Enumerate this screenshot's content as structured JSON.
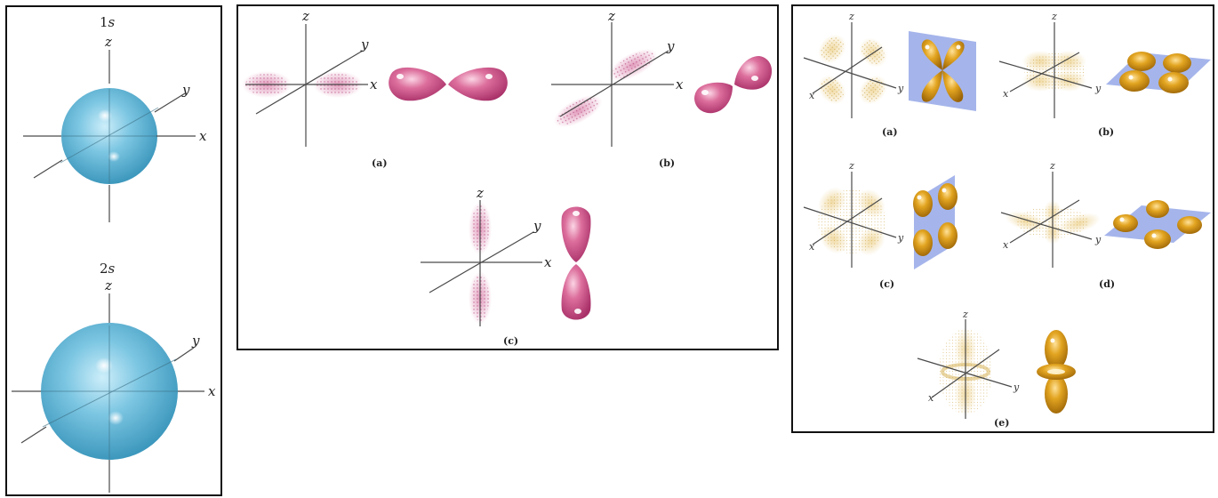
{
  "s_orbitals": {
    "orbital_1": {
      "prefix": "1",
      "letter": "s"
    },
    "orbital_2": {
      "prefix": "2",
      "letter": "s"
    },
    "axes": {
      "x": "x",
      "y": "y",
      "z": "z"
    }
  },
  "p_orbitals": {
    "axes": {
      "x": "x",
      "y": "y",
      "z": "z"
    },
    "captions": {
      "a": "(a)",
      "b": "(b)",
      "c": "(c)"
    }
  },
  "d_orbitals": {
    "axes": {
      "x": "x",
      "y": "y",
      "z": "z"
    },
    "captions": {
      "a": "(a)",
      "b": "(b)",
      "c": "(c)",
      "d": "(d)",
      "e": "(e)"
    }
  },
  "colors": {
    "s_orbital": "#5bb6d8",
    "p_orbital": "#c9457f",
    "d_orbital": "#d4920c",
    "nodal_plane": "#8ea3e6",
    "panel_border": "#111111"
  }
}
